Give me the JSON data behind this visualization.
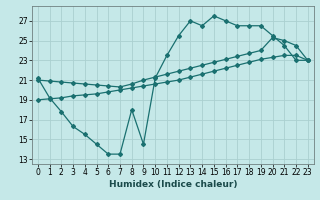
{
  "xlabel": "Humidex (Indice chaleur)",
  "bg_color": "#c5e8e8",
  "grid_color": "#aad0d0",
  "line_color": "#1a7070",
  "xlim": [
    -0.5,
    23.5
  ],
  "ylim": [
    12.5,
    28.5
  ],
  "xticks": [
    0,
    1,
    2,
    3,
    4,
    5,
    6,
    7,
    8,
    9,
    10,
    11,
    12,
    13,
    14,
    15,
    16,
    17,
    18,
    19,
    20,
    21,
    22,
    23
  ],
  "yticks": [
    13,
    15,
    17,
    19,
    21,
    23,
    25,
    27
  ],
  "line1_x": [
    0,
    1,
    2,
    3,
    4,
    5,
    6,
    7,
    8,
    9,
    10,
    11,
    12,
    13,
    14,
    15,
    16,
    17,
    18,
    19,
    20,
    21,
    22,
    23
  ],
  "line1_y": [
    21.2,
    19.2,
    17.8,
    16.3,
    15.5,
    14.5,
    13.5,
    13.5,
    18.0,
    14.5,
    21.2,
    23.5,
    25.5,
    27.0,
    26.5,
    27.5,
    27.0,
    26.5,
    26.5,
    26.5,
    25.5,
    24.5,
    23.0,
    23.0
  ],
  "line2_x": [
    0,
    1,
    2,
    3,
    4,
    5,
    6,
    7,
    8,
    9,
    10,
    11,
    12,
    13,
    14,
    15,
    16,
    17,
    18,
    19,
    20,
    21,
    22,
    23
  ],
  "line2_y": [
    21.0,
    20.9,
    20.8,
    20.7,
    20.6,
    20.5,
    20.4,
    20.3,
    20.6,
    21.0,
    21.3,
    21.6,
    21.9,
    22.2,
    22.5,
    22.8,
    23.1,
    23.4,
    23.7,
    24.0,
    25.3,
    25.0,
    24.5,
    23.0
  ],
  "line3_x": [
    0,
    1,
    2,
    3,
    4,
    5,
    6,
    7,
    8,
    9,
    10,
    11,
    12,
    13,
    14,
    15,
    16,
    17,
    18,
    19,
    20,
    21,
    22,
    23
  ],
  "line3_y": [
    19.0,
    19.1,
    19.2,
    19.4,
    19.5,
    19.6,
    19.8,
    20.0,
    20.2,
    20.4,
    20.6,
    20.8,
    21.0,
    21.3,
    21.6,
    21.9,
    22.2,
    22.5,
    22.8,
    23.1,
    23.3,
    23.5,
    23.5,
    23.0
  ]
}
